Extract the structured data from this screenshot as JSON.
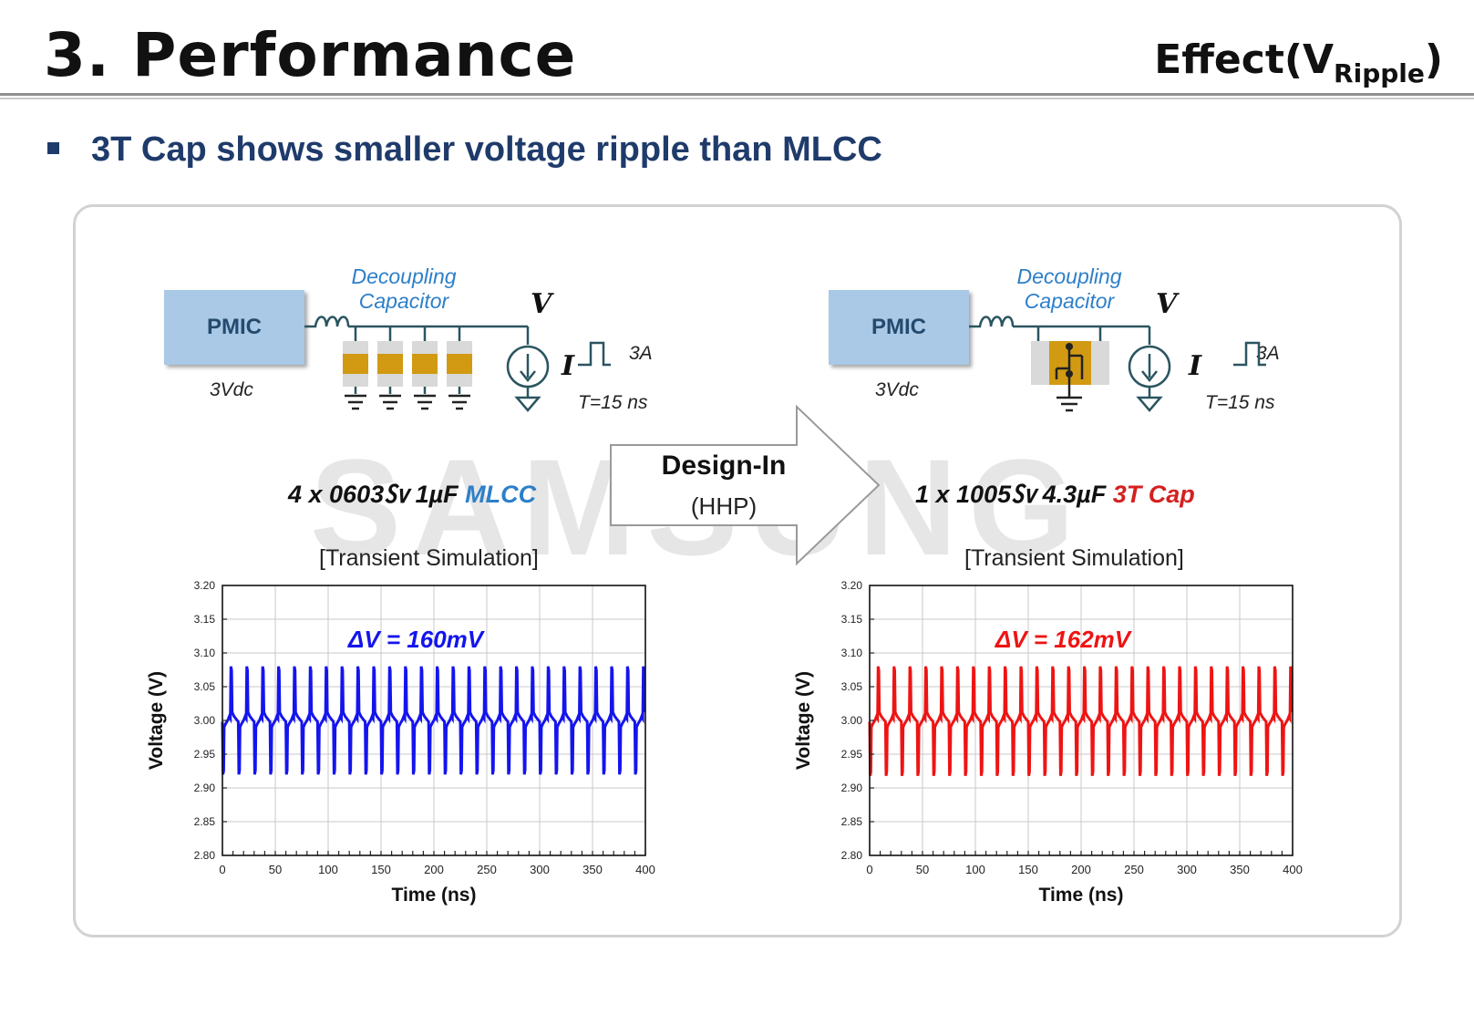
{
  "header": {
    "title": "3. Performance",
    "effect_main": "Effect(V",
    "effect_sub": "Ripple",
    "effect_close": ")"
  },
  "subtitle": "3T Cap shows smaller voltage ripple than MLCC",
  "watermark": "SAMSUNG",
  "left_circuit": {
    "pmic": "PMIC",
    "source": "3Vdc",
    "cap_label_1": "Decoupling",
    "cap_label_2": "Capacitor",
    "node": "V",
    "current": "I",
    "pulse_amp": "3A",
    "period": "T=15 ns",
    "caption_prefix": "4 x 0603㏜ 1µF ",
    "caption_highlight": "MLCC"
  },
  "right_circuit": {
    "pmic": "PMIC",
    "source": "3Vdc",
    "cap_label_1": "Decoupling",
    "cap_label_2": "Capacitor",
    "node": "V",
    "current": "I",
    "pulse_amp": "3A",
    "period": "T=15 ns",
    "caption_prefix": "1 x 1005㏜ 4.3µF ",
    "caption_highlight": "3T Cap"
  },
  "arrow": {
    "label": "Design-In",
    "sub": "(HHP)"
  },
  "colors": {
    "mlcc": "#1414ee",
    "threet": "#ee1414",
    "navy": "#1f3b6b"
  },
  "chart_data": [
    {
      "type": "line",
      "title": "[Transient Simulation]",
      "annotation": "ΔV = 160mV",
      "xlabel": "Time (ns)",
      "ylabel": "Voltage (V)",
      "xlim": [
        0,
        400
      ],
      "ylim": [
        2.8,
        3.2
      ],
      "xticks": [
        "0",
        "50",
        "100",
        "150",
        "200",
        "250",
        "300",
        "350",
        "400"
      ],
      "yticks": [
        "2.80",
        "2.85",
        "2.90",
        "2.95",
        "3.00",
        "3.05",
        "3.10",
        "3.15",
        "3.20"
      ],
      "grid": true,
      "series": [
        {
          "name": "MLCC",
          "color": "#1414ee",
          "period_ns": 15,
          "baseline": 3.0,
          "max": 3.08,
          "min": 2.92
        }
      ]
    },
    {
      "type": "line",
      "title": "[Transient Simulation]",
      "annotation": "ΔV = 162mV",
      "xlabel": "Time (ns)",
      "ylabel": "Voltage (V)",
      "xlim": [
        0,
        400
      ],
      "ylim": [
        2.8,
        3.2
      ],
      "xticks": [
        "0",
        "50",
        "100",
        "150",
        "200",
        "250",
        "300",
        "350",
        "400"
      ],
      "yticks": [
        "2.80",
        "2.85",
        "2.90",
        "2.95",
        "3.00",
        "3.05",
        "3.10",
        "3.15",
        "3.20"
      ],
      "grid": true,
      "series": [
        {
          "name": "3T Cap",
          "color": "#ee1414",
          "period_ns": 15,
          "baseline": 3.0,
          "max": 3.08,
          "min": 2.918
        }
      ]
    }
  ]
}
